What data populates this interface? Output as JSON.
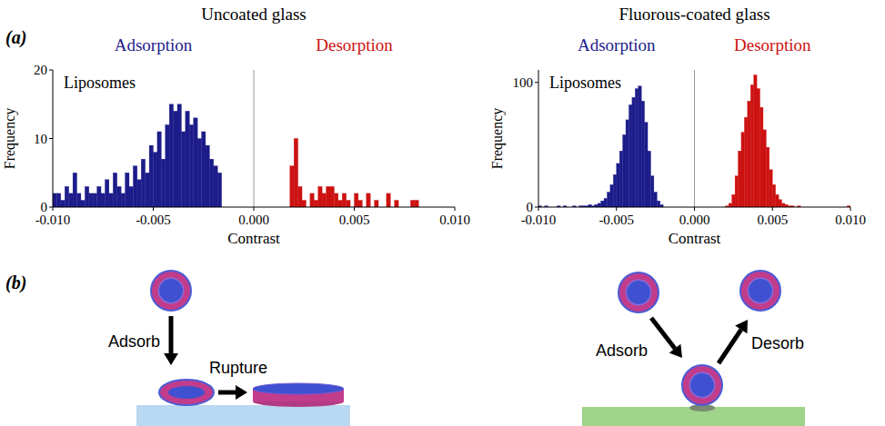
{
  "figure": {
    "panel_labels": [
      "(a)",
      "(b)"
    ]
  },
  "chart_data": [
    {
      "type": "histogram",
      "title": "Uncoated glass",
      "annotation": "Liposomes",
      "x_label": "Contrast",
      "y_label": "Frequency",
      "xlim": [
        -0.01,
        0.01
      ],
      "xticks": [
        {
          "value": -0.01,
          "label": "-0.010"
        },
        {
          "value": -0.005,
          "label": "-0.005"
        },
        {
          "value": 0,
          "label": "0.000"
        },
        {
          "value": 0.005,
          "label": "0.005"
        },
        {
          "value": 0.01,
          "label": "0.010"
        }
      ],
      "ylim": [
        0,
        20
      ],
      "yticks": [
        0,
        10,
        20
      ],
      "divider_x": 0,
      "series": [
        {
          "name": "Adsorption",
          "color": "#1c1c8a",
          "bins": [
            -0.01,
            -0.0098,
            -0.0096,
            -0.0094,
            -0.0092,
            -0.009,
            -0.0088,
            -0.0086,
            -0.0084,
            -0.0082,
            -0.008,
            -0.0078,
            -0.0076,
            -0.0074,
            -0.0072,
            -0.007,
            -0.0068,
            -0.0066,
            -0.0064,
            -0.0062,
            -0.006,
            -0.0058,
            -0.0056,
            -0.0054,
            -0.0052,
            -0.005,
            -0.0048,
            -0.0046,
            -0.0044,
            -0.0042,
            -0.004,
            -0.0038,
            -0.0036,
            -0.0034,
            -0.0032,
            -0.003,
            -0.0028,
            -0.0026,
            -0.0024,
            -0.0022,
            -0.002,
            -0.0018,
            -0.0016
          ],
          "values": [
            2,
            2,
            1,
            3,
            2,
            5,
            2,
            1,
            3,
            2,
            2,
            3,
            2,
            4,
            2,
            5,
            3,
            2,
            5,
            3,
            6,
            4,
            7,
            5,
            9,
            8,
            11,
            7,
            12,
            15,
            14,
            15,
            11,
            14,
            12,
            13,
            10,
            11,
            9,
            7,
            6,
            5
          ]
        },
        {
          "name": "Desorption",
          "color": "#cc1111",
          "bins": [
            0.0018,
            0.002,
            0.0022,
            0.0024,
            0.0026,
            0.0028,
            0.003,
            0.0032,
            0.0034,
            0.0036,
            0.0038,
            0.004,
            0.0042,
            0.0044,
            0.0046,
            0.0048,
            0.005,
            0.0052,
            0.0054,
            0.0056,
            0.0058,
            0.006,
            0.0062,
            0.0064,
            0.0066,
            0.0068,
            0.007,
            0.0072,
            0.0074,
            0.0076,
            0.0078,
            0.008,
            0.0082
          ],
          "values": [
            6,
            10,
            3,
            1,
            0,
            2,
            1,
            3,
            2,
            3,
            3,
            2,
            1,
            2,
            1,
            0,
            2,
            1,
            0,
            2,
            0,
            1,
            0,
            0,
            2,
            0,
            1,
            0,
            0,
            0,
            1,
            1
          ]
        }
      ]
    },
    {
      "type": "histogram",
      "title": "Fluorous-coated glass",
      "annotation": "Liposomes",
      "x_label": "Contrast",
      "y_label": "Frequency",
      "xlim": [
        -0.01,
        0.01
      ],
      "xticks": [
        {
          "value": -0.01,
          "label": "-0.010"
        },
        {
          "value": -0.005,
          "label": "-0.005"
        },
        {
          "value": 0,
          "label": "0.000"
        },
        {
          "value": 0.005,
          "label": "0.005"
        },
        {
          "value": 0.01,
          "label": "0.010"
        }
      ],
      "ylim": [
        0,
        110
      ],
      "yticks": [
        0,
        100
      ],
      "divider_x": 0,
      "series": [
        {
          "name": "Adsorption",
          "color": "#1c1c8a",
          "bins": [
            -0.01,
            -0.0098,
            -0.0096,
            -0.0094,
            -0.0092,
            -0.009,
            -0.0088,
            -0.0086,
            -0.0084,
            -0.0082,
            -0.008,
            -0.0078,
            -0.0076,
            -0.0074,
            -0.0072,
            -0.007,
            -0.0068,
            -0.0066,
            -0.0064,
            -0.0062,
            -0.006,
            -0.0058,
            -0.0056,
            -0.0054,
            -0.0052,
            -0.005,
            -0.0048,
            -0.0046,
            -0.0044,
            -0.0042,
            -0.004,
            -0.0038,
            -0.0036,
            -0.0034,
            -0.0032,
            -0.003,
            -0.0028,
            -0.0026,
            -0.0024,
            -0.0022,
            -0.002
          ],
          "values": [
            1,
            0,
            1,
            0,
            0,
            0,
            1,
            0,
            1,
            0,
            0,
            1,
            0,
            1,
            1,
            1,
            2,
            1,
            2,
            3,
            5,
            7,
            12,
            18,
            26,
            35,
            45,
            58,
            70,
            82,
            88,
            95,
            97,
            85,
            68,
            45,
            25,
            12,
            5,
            2
          ]
        },
        {
          "name": "Desorption",
          "color": "#cc1111",
          "bins": [
            0.002,
            0.0022,
            0.0024,
            0.0026,
            0.0028,
            0.003,
            0.0032,
            0.0034,
            0.0036,
            0.0038,
            0.004,
            0.0042,
            0.0044,
            0.0046,
            0.0048,
            0.005,
            0.0052,
            0.0054,
            0.0056,
            0.0058,
            0.006,
            0.0062,
            0.0064,
            0.0066,
            0.0068,
            0.007,
            0.0072,
            0.0074,
            0.0076,
            0.0078,
            0.008,
            0.0082,
            0.0084,
            0.0086,
            0.0088,
            0.009,
            0.0092,
            0.0094,
            0.0096,
            0.0098,
            0.01
          ],
          "values": [
            1,
            3,
            10,
            25,
            45,
            60,
            72,
            85,
            98,
            106,
            95,
            80,
            62,
            48,
            30,
            18,
            10,
            6,
            3,
            2,
            1,
            1,
            0,
            1,
            0,
            0,
            0,
            0,
            0,
            0,
            0,
            0,
            0,
            0,
            0,
            0,
            0,
            0,
            0,
            1
          ]
        }
      ]
    }
  ],
  "diagram": {
    "uncoated": [
      "Adsorb",
      "Rupture"
    ],
    "coated": [
      "Adsorb",
      "Desorb"
    ]
  }
}
